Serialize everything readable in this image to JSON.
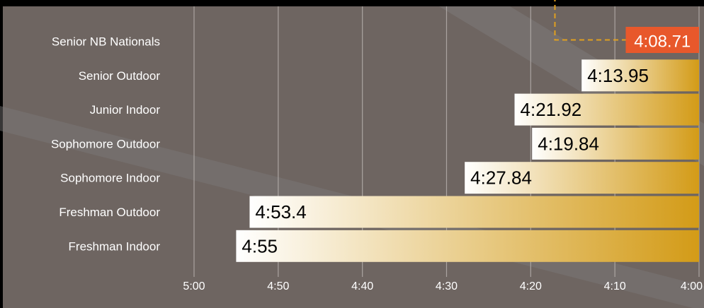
{
  "chart_data": {
    "type": "bar",
    "orientation": "horizontal",
    "x_axis_reversed": true,
    "categories": [
      "Senior NB Nationals",
      "Senior Outdoor",
      "Junior Indoor",
      "Sophomore Outdoor",
      "Sophomore Indoor",
      "Freshman Outdoor",
      "Freshman Indoor"
    ],
    "values": [
      248.71,
      253.95,
      261.92,
      259.84,
      267.84,
      293.4,
      295
    ],
    "value_labels": [
      "4:08.71",
      "4:13.95",
      "4:21.92",
      "4:19.84",
      "4:27.84",
      "4:53.4",
      "4:55"
    ],
    "highlight_index": 0,
    "xlim": [
      300,
      240
    ],
    "xticks": [
      300,
      290,
      280,
      270,
      260,
      250,
      240
    ],
    "xtick_labels": [
      "5:00",
      "4:50",
      "4:40",
      "4:30",
      "4:20",
      "4:10",
      "4:00"
    ],
    "grid": true,
    "colors": {
      "background": "#6e6561",
      "frame": "#000000",
      "bar_start": "#ffffff",
      "bar_end": "#d39b17",
      "highlight_box": "#e8582b",
      "highlight_text": "#ffffff",
      "connector": "#e0a020",
      "label_text": "#ffffff",
      "value_text": "#000000"
    }
  }
}
